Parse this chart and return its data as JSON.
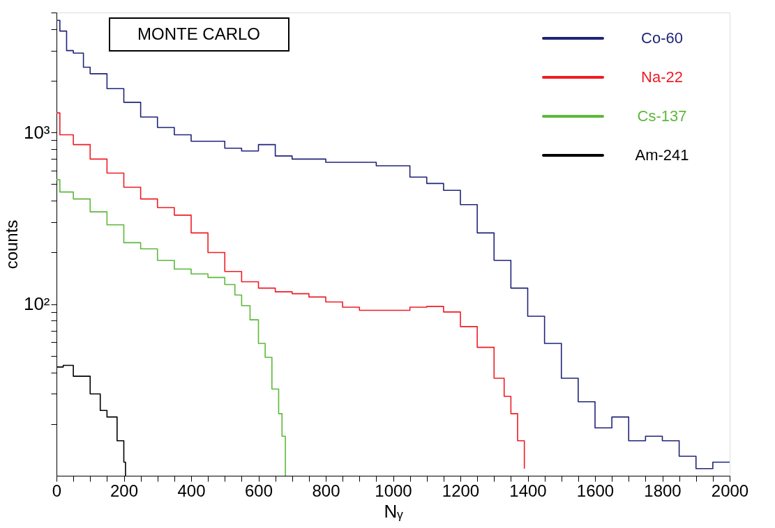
{
  "chart_data": {
    "type": "step",
    "xlabel": "Nᵧ",
    "ylabel": "counts",
    "annotations": [
      "MONTE CARLO"
    ],
    "legend": "top right",
    "grid": false,
    "log": "y",
    "xlim": [
      0,
      2000
    ],
    "ylim": [
      10,
      5000
    ],
    "xticks": [
      0,
      {
        "value": 50,
        "label": null
      },
      {
        "value": 100,
        "label": null
      },
      {
        "value": 150,
        "label": null
      },
      200,
      {
        "value": 250,
        "label": null
      },
      {
        "value": 300,
        "label": null
      },
      {
        "value": 350,
        "label": null
      },
      400,
      {
        "value": 450,
        "label": null
      },
      {
        "value": 500,
        "label": null
      },
      {
        "value": 550,
        "label": null
      },
      600,
      {
        "value": 650,
        "label": null
      },
      {
        "value": 700,
        "label": null
      },
      {
        "value": 750,
        "label": null
      },
      800,
      {
        "value": 850,
        "label": null
      },
      {
        "value": 900,
        "label": null
      },
      {
        "value": 950,
        "label": null
      },
      1000,
      {
        "value": 1050,
        "label": null
      },
      {
        "value": 1100,
        "label": null
      },
      {
        "value": 1150,
        "label": null
      },
      1200,
      {
        "value": 1250,
        "label": null
      },
      {
        "value": 1300,
        "label": null
      },
      {
        "value": 1350,
        "label": null
      },
      1400,
      {
        "value": 1450,
        "label": null
      },
      {
        "value": 1500,
        "label": null
      },
      {
        "value": 1550,
        "label": null
      },
      1600,
      {
        "value": 1650,
        "label": null
      },
      {
        "value": 1700,
        "label": null
      },
      {
        "value": 1750,
        "label": null
      },
      1800,
      {
        "value": 1850,
        "label": null
      },
      {
        "value": 1900,
        "label": null
      },
      {
        "value": 1950,
        "label": null
      },
      2000
    ],
    "yticks": [
      {
        "value": 20,
        "label": null
      },
      {
        "value": 30,
        "label": null
      },
      {
        "value": 40,
        "label": null
      },
      {
        "value": 50,
        "label": null
      },
      {
        "value": 60,
        "label": null
      },
      {
        "value": 70,
        "label": null
      },
      {
        "value": 80,
        "label": null
      },
      {
        "value": 90,
        "label": null
      },
      {
        "value": 100,
        "label": "10²"
      },
      {
        "value": 200,
        "label": null
      },
      {
        "value": 300,
        "label": null
      },
      {
        "value": 400,
        "label": null
      },
      {
        "value": 500,
        "label": null
      },
      {
        "value": 600,
        "label": null
      },
      {
        "value": 700,
        "label": null
      },
      {
        "value": 800,
        "label": null
      },
      {
        "value": 900,
        "label": null
      },
      {
        "value": 1000,
        "label": "10³"
      },
      {
        "value": 2000,
        "label": null
      },
      {
        "value": 3000,
        "label": null
      },
      {
        "value": 4000,
        "label": null
      },
      {
        "value": 5000,
        "label": null
      }
    ],
    "series": [
      {
        "name": "Co-60",
        "color": "#1f2478",
        "x": [
          0,
          10,
          30,
          50,
          80,
          100,
          150,
          200,
          250,
          300,
          350,
          400,
          450,
          500,
          550,
          600,
          650,
          700,
          750,
          800,
          850,
          900,
          950,
          1000,
          1050,
          1100,
          1150,
          1200,
          1250,
          1300,
          1350,
          1400,
          1450,
          1500,
          1550,
          1600,
          1650,
          1700,
          1750,
          1800,
          1850,
          1900,
          1950,
          2000
        ],
        "values": [
          4500,
          3900,
          3000,
          2900,
          2400,
          2200,
          1800,
          1500,
          1230,
          1070,
          970,
          890,
          890,
          810,
          780,
          850,
          730,
          700,
          700,
          670,
          670,
          670,
          640,
          640,
          550,
          505,
          460,
          380,
          260,
          180,
          124,
          85,
          59,
          37,
          27,
          19,
          22,
          16,
          17,
          16,
          13,
          11,
          12,
          12
        ]
      },
      {
        "name": "Na-22",
        "color": "#ee1c25",
        "x": [
          0,
          10,
          50,
          100,
          150,
          200,
          250,
          300,
          350,
          400,
          450,
          500,
          550,
          600,
          650,
          700,
          750,
          800,
          850,
          900,
          950,
          1000,
          1050,
          1100,
          1150,
          1200,
          1250,
          1300,
          1330,
          1350,
          1370,
          1390
        ],
        "values": [
          1300,
          970,
          850,
          700,
          580,
          480,
          410,
          365,
          330,
          260,
          200,
          155,
          135,
          124,
          118,
          115,
          110,
          103,
          96,
          92,
          92,
          92,
          96,
          97,
          90,
          74,
          56,
          37,
          29,
          23,
          16,
          11
        ]
      },
      {
        "name": "Cs-137",
        "color": "#5cb83a",
        "x": [
          0,
          10,
          50,
          100,
          150,
          200,
          250,
          300,
          350,
          400,
          450,
          500,
          530,
          550,
          575,
          600,
          620,
          640,
          660,
          670,
          680
        ],
        "values": [
          530,
          450,
          410,
          345,
          290,
          228,
          210,
          180,
          160,
          150,
          143,
          130,
          113,
          98,
          81,
          59,
          49,
          32,
          23,
          17,
          10
        ]
      },
      {
        "name": "Am-241",
        "color": "#000000",
        "x": [
          0,
          20,
          50,
          100,
          130,
          150,
          180,
          200,
          205
        ],
        "values": [
          43,
          44,
          38,
          30,
          24,
          22,
          16,
          12,
          10
        ]
      }
    ]
  }
}
